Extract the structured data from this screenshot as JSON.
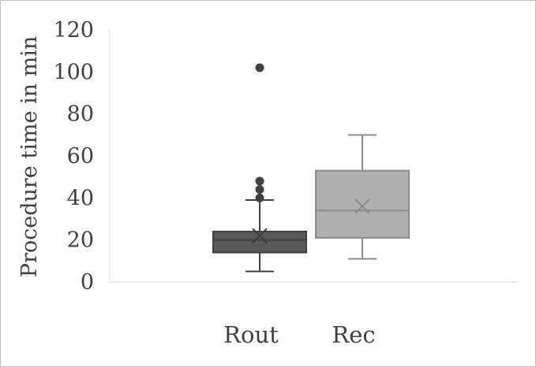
{
  "chart_data": {
    "type": "box",
    "ylabel": "Procedure time in min",
    "ylim": [
      0,
      120
    ],
    "yticks": [
      0,
      20,
      40,
      60,
      80,
      100,
      120
    ],
    "grid": false,
    "categories": [
      "Rout",
      "Rec"
    ],
    "boxes": [
      {
        "category": "Rout",
        "color": "#595959",
        "whisker_low": 5,
        "q1": 14,
        "median": 20,
        "q3": 24,
        "whisker_high": 39,
        "mean": 22,
        "outliers": [
          40,
          44,
          48,
          102
        ]
      },
      {
        "category": "Rec",
        "color": "#afafaf",
        "whisker_low": 11,
        "q1": 21,
        "median": 34,
        "q3": 53,
        "whisker_high": 70,
        "mean": 36,
        "outliers": []
      }
    ]
  }
}
